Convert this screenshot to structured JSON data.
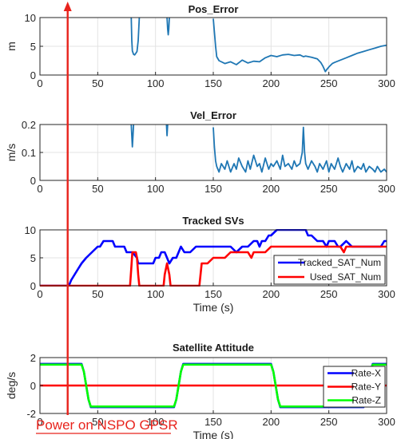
{
  "chart_data": [
    {
      "type": "line",
      "title": "Pos_Error",
      "ylabel": "m",
      "xlabel": "",
      "xlim": [
        0,
        300
      ],
      "ylim": [
        0,
        10
      ],
      "xticks": [
        "0",
        "50",
        "100",
        "150",
        "200",
        "250",
        "300"
      ],
      "yticks": [
        "0",
        "5",
        "10"
      ],
      "grid": true,
      "series": [
        {
          "color": "#1f77b4",
          "x": [
            150,
            152,
            153,
            155,
            160,
            165,
            170,
            175,
            180,
            185,
            190,
            195,
            200,
            205,
            210,
            215,
            220,
            225,
            228,
            230,
            235,
            240,
            243,
            245,
            247,
            248,
            250,
            253,
            255,
            260,
            265,
            270,
            275,
            280,
            285,
            290,
            295,
            300
          ],
          "y": [
            9.8,
            5.0,
            3.2,
            2.5,
            2.0,
            2.3,
            1.8,
            2.6,
            2.1,
            2.4,
            2.3,
            3.0,
            3.4,
            3.2,
            3.5,
            3.6,
            3.4,
            3.5,
            3.2,
            3.3,
            3.1,
            2.8,
            2.2,
            1.5,
            0.6,
            0.9,
            1.4,
            2.0,
            2.2,
            2.6,
            3.0,
            3.4,
            3.8,
            4.1,
            4.4,
            4.7,
            5.0,
            5.2
          ]
        },
        {
          "color": "#1f77b4",
          "x": [
            79,
            79.5,
            80,
            81,
            82,
            83,
            84,
            85,
            86
          ],
          "y": [
            10,
            6,
            4.2,
            3.6,
            3.5,
            3.8,
            4.1,
            6,
            10
          ]
        },
        {
          "color": "#1f77b4",
          "x": [
            110,
            110.5,
            111,
            111.5,
            112
          ],
          "y": [
            10,
            8,
            7,
            8,
            10
          ]
        }
      ]
    },
    {
      "type": "line",
      "title": "Vel_Error",
      "ylabel": "m/s",
      "xlabel": "",
      "xlim": [
        0,
        300
      ],
      "ylim": [
        0,
        0.2
      ],
      "xticks": [
        "0",
        "50",
        "100",
        "150",
        "200",
        "250",
        "300"
      ],
      "yticks": [
        "0",
        "0.1",
        "0.2"
      ],
      "grid": true,
      "series": [
        {
          "color": "#1f77b4",
          "x": [
            150,
            151,
            152,
            153,
            155,
            157,
            160,
            162,
            165,
            168,
            170,
            172,
            175,
            178,
            180,
            182,
            185,
            188,
            190,
            192,
            195,
            198,
            200,
            202,
            205,
            208,
            210,
            212,
            215,
            218,
            220,
            222,
            225,
            227,
            228,
            229,
            230,
            232,
            235,
            238,
            240,
            242,
            245,
            248,
            250,
            252,
            255,
            258,
            260,
            262,
            265,
            268,
            270,
            272,
            275,
            278,
            280,
            282,
            285,
            288,
            290,
            292,
            295,
            298,
            300
          ],
          "y": [
            0.19,
            0.12,
            0.07,
            0.05,
            0.03,
            0.06,
            0.04,
            0.07,
            0.03,
            0.06,
            0.04,
            0.08,
            0.05,
            0.03,
            0.07,
            0.04,
            0.09,
            0.05,
            0.06,
            0.03,
            0.08,
            0.04,
            0.06,
            0.05,
            0.07,
            0.04,
            0.09,
            0.05,
            0.06,
            0.04,
            0.07,
            0.05,
            0.06,
            0.1,
            0.19,
            0.1,
            0.06,
            0.04,
            0.07,
            0.05,
            0.03,
            0.06,
            0.04,
            0.07,
            0.03,
            0.06,
            0.04,
            0.08,
            0.05,
            0.03,
            0.06,
            0.04,
            0.07,
            0.03,
            0.05,
            0.04,
            0.06,
            0.03,
            0.05,
            0.04,
            0.03,
            0.05,
            0.03,
            0.04,
            0.03
          ]
        },
        {
          "color": "#1f77b4",
          "x": [
            79,
            79.5,
            80,
            80.5,
            81
          ],
          "y": [
            0.2,
            0.16,
            0.12,
            0.16,
            0.2
          ]
        },
        {
          "color": "#1f77b4",
          "x": [
            109.5,
            110,
            110.5
          ],
          "y": [
            0.2,
            0.16,
            0.2
          ]
        }
      ]
    },
    {
      "type": "line",
      "title": "Tracked SVs",
      "ylabel": "",
      "xlabel": "Time (s)",
      "xlim": [
        0,
        300
      ],
      "ylim": [
        0,
        10
      ],
      "xticks": [
        "0",
        "50",
        "100",
        "150",
        "200",
        "250",
        "300"
      ],
      "yticks": [
        "0",
        "5",
        "10"
      ],
      "grid": true,
      "legend": "bottom-right",
      "series": [
        {
          "name": "Tracked_SAT_Num",
          "color": "#0000ff",
          "x": [
            0,
            25,
            27,
            30,
            33,
            36,
            40,
            45,
            50,
            52,
            55,
            58,
            60,
            63,
            65,
            68,
            70,
            73,
            75,
            78,
            80,
            84,
            85,
            88,
            90,
            95,
            98,
            100,
            103,
            105,
            108,
            110,
            112,
            115,
            118,
            120,
            122,
            125,
            128,
            130,
            135,
            140,
            145,
            150,
            155,
            160,
            165,
            170,
            175,
            180,
            185,
            188,
            190,
            192,
            195,
            198,
            200,
            205,
            210,
            215,
            220,
            225,
            230,
            232,
            235,
            240,
            245,
            248,
            250,
            255,
            258,
            260,
            265,
            270,
            275,
            280,
            285,
            290,
            295,
            298,
            300
          ],
          "y": [
            0,
            0,
            1,
            2,
            3,
            4,
            5,
            6,
            7,
            7,
            8,
            8,
            8,
            8,
            7,
            7,
            7,
            7,
            6,
            6,
            6,
            5,
            4,
            4,
            4,
            4,
            4,
            5,
            5,
            6,
            6,
            5,
            4,
            5,
            5,
            6,
            7,
            6,
            6,
            6,
            7,
            7,
            7,
            7,
            7,
            7,
            7,
            6,
            7,
            7,
            8,
            8,
            7,
            8,
            8,
            9,
            9,
            10,
            10,
            10,
            10,
            10,
            10,
            9,
            9,
            8,
            8,
            7,
            8,
            8,
            7,
            7,
            8,
            7,
            7,
            7,
            7,
            7,
            7,
            8,
            8
          ]
        },
        {
          "name": "Used_SAT_Num",
          "color": "#ff0000",
          "x": [
            0,
            78,
            79,
            80,
            83,
            84,
            85,
            86,
            87,
            88,
            107,
            108,
            110,
            112,
            113,
            114,
            115,
            138,
            140,
            145,
            150,
            155,
            160,
            165,
            170,
            175,
            180,
            183,
            185,
            190,
            195,
            200,
            205,
            210,
            215,
            220,
            230,
            240,
            250,
            260,
            263,
            265,
            270,
            275,
            280,
            290,
            300
          ],
          "y": [
            0,
            0,
            3,
            6,
            6,
            5,
            2,
            0,
            0,
            0,
            0,
            2,
            4,
            2,
            0,
            0,
            0,
            0,
            4,
            4,
            5,
            5,
            5,
            6,
            6,
            6,
            6,
            5,
            6,
            6,
            6,
            7,
            7,
            7,
            7,
            7,
            7,
            7,
            7,
            7,
            6,
            7,
            7,
            7,
            7,
            7,
            7
          ]
        }
      ]
    },
    {
      "type": "line",
      "title": "Satellite Attitude",
      "ylabel": "deg/s",
      "xlabel": "Time (s)",
      "xlim": [
        0,
        300
      ],
      "ylim": [
        -2,
        2
      ],
      "xticks": [
        "0",
        "50",
        "100",
        "150",
        "200",
        "250",
        "300"
      ],
      "yticks": [
        "-2",
        "0",
        "2"
      ],
      "grid": true,
      "legend": "top-right",
      "series": [
        {
          "name": "Rate-X",
          "color": "#0000ff",
          "x": [
            0,
            36,
            38,
            40,
            42,
            44,
            116,
            118,
            120,
            122,
            124,
            200,
            202,
            204,
            206,
            208,
            280,
            282,
            284,
            286,
            288,
            300
          ],
          "y": [
            1.55,
            1.55,
            1.0,
            0,
            -1.0,
            -1.55,
            -1.55,
            -1.0,
            0,
            1.0,
            1.55,
            1.55,
            1.0,
            0,
            -1.0,
            -1.55,
            -1.55,
            -1.0,
            0,
            1.0,
            1.55,
            1.55
          ]
        },
        {
          "name": "Rate-Y",
          "color": "#ff0000",
          "x": [
            0,
            300
          ],
          "y": [
            0,
            0
          ]
        },
        {
          "name": "Rate-Z",
          "color": "#00ff00",
          "x": [
            0,
            36,
            38,
            40,
            42,
            44,
            116,
            118,
            120,
            122,
            124,
            200,
            202,
            204,
            206,
            208,
            280,
            282,
            284,
            286,
            288,
            300
          ],
          "y": [
            1.5,
            1.5,
            1.0,
            0,
            -1.0,
            -1.5,
            -1.5,
            -1.0,
            0,
            1.0,
            1.5,
            1.5,
            1.0,
            0,
            -1.0,
            -1.5,
            -1.5,
            -1.0,
            0,
            1.0,
            1.5,
            1.5
          ]
        }
      ]
    }
  ],
  "annotation": {
    "label": "Power on NSPO GPSR",
    "time": 24,
    "color": "#e8231c"
  }
}
